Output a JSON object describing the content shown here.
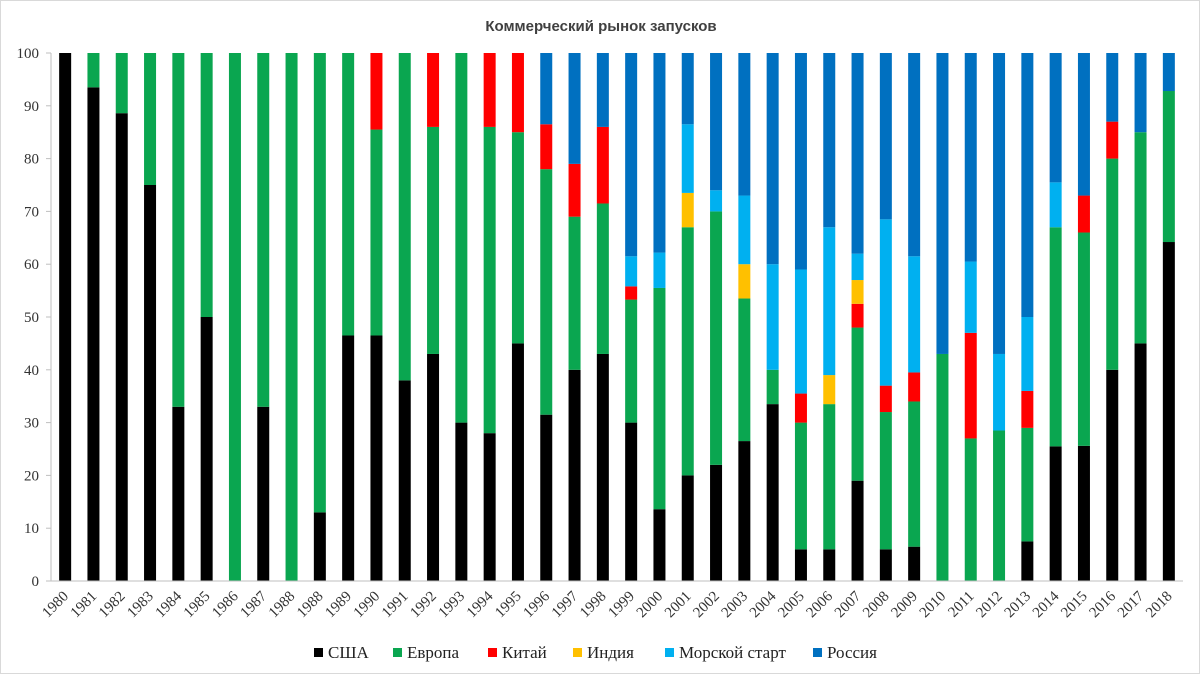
{
  "chart_data": {
    "type": "bar",
    "stacked": true,
    "title": "Коммерческий рынок запусков",
    "xlabel": "",
    "ylabel": "",
    "ylim": [
      0,
      100
    ],
    "yticks": [
      0,
      10,
      20,
      30,
      40,
      50,
      60,
      70,
      80,
      90,
      100
    ],
    "grid": false,
    "legend_position": "bottom",
    "categories": [
      "1980",
      "1981",
      "1982",
      "1983",
      "1984",
      "1985",
      "1986",
      "1987",
      "1988",
      "1988",
      "1989",
      "1990",
      "1991",
      "1992",
      "1993",
      "1994",
      "1995",
      "1996",
      "1997",
      "1998",
      "1999",
      "2000",
      "2001",
      "2002",
      "2003",
      "2004",
      "2005",
      "2006",
      "2007",
      "2008",
      "2009",
      "2010",
      "2011",
      "2012",
      "2013",
      "2014",
      "2015",
      "2016",
      "2017",
      "2018"
    ],
    "series": [
      {
        "name": "США",
        "color": "#000000",
        "values": [
          100,
          93.5,
          88.6,
          75,
          33,
          50,
          0,
          33,
          0,
          13,
          46.5,
          46.5,
          38,
          43,
          30,
          28,
          45,
          31.5,
          40,
          43,
          30,
          13.6,
          20,
          22,
          26.5,
          33.5,
          6,
          6,
          19,
          6,
          6.5,
          0,
          0,
          0,
          7.5,
          25.5,
          25.6,
          40,
          45,
          64.2
        ]
      },
      {
        "name": "Европа",
        "color": "#0aa650",
        "values": [
          0,
          6.5,
          11.4,
          25,
          67,
          50,
          100,
          67,
          100,
          87,
          53.5,
          39,
          62,
          43,
          70,
          58,
          40,
          46.5,
          29,
          28.5,
          23.3,
          41.9,
          47,
          48,
          27,
          6.5,
          24,
          27.5,
          29,
          26,
          27.5,
          43,
          27,
          28.5,
          21.5,
          41.5,
          40.4,
          40,
          40,
          28.6
        ]
      },
      {
        "name": "Китай",
        "color": "#ff0000",
        "values": [
          0,
          0,
          0,
          0,
          0,
          0,
          0,
          0,
          0,
          0,
          0,
          14.5,
          0,
          14,
          0,
          14,
          15,
          8.5,
          10,
          14.5,
          2.5,
          0,
          0,
          0,
          0,
          0,
          5.5,
          0,
          4.5,
          5,
          5.5,
          0,
          20,
          0,
          7,
          0,
          7,
          7,
          0,
          0
        ]
      },
      {
        "name": "Индия",
        "color": "#ffc000",
        "values": [
          0,
          0,
          0,
          0,
          0,
          0,
          0,
          0,
          0,
          0,
          0,
          0,
          0,
          0,
          0,
          0,
          0,
          0,
          0,
          0,
          0,
          0,
          6.5,
          0,
          6.5,
          0,
          0,
          5.5,
          4.5,
          0,
          0,
          0,
          0,
          0,
          0,
          0,
          0,
          0,
          0,
          0
        ]
      },
      {
        "name": "Морской старт",
        "color": "#00b0f0",
        "values": [
          0,
          0,
          0,
          0,
          0,
          0,
          0,
          0,
          0,
          0,
          0,
          0,
          0,
          0,
          0,
          0,
          0,
          0,
          0,
          0,
          5.7,
          6.7,
          13,
          4,
          13,
          20,
          23.5,
          28,
          5,
          31.5,
          22,
          0,
          13.5,
          14.5,
          14,
          8.5,
          0,
          0,
          0,
          0
        ]
      },
      {
        "name": "Россия",
        "color": "#0070c0",
        "values": [
          0,
          0,
          0,
          0,
          0,
          0,
          0,
          0,
          0,
          0,
          0,
          0,
          0,
          0,
          0,
          0,
          0,
          13.5,
          21,
          14,
          38.5,
          37.8,
          13.5,
          26,
          27,
          40,
          41,
          33,
          38,
          31.5,
          38.5,
          57,
          39.5,
          57,
          50,
          24.5,
          27,
          13,
          15,
          7.2
        ]
      }
    ]
  }
}
